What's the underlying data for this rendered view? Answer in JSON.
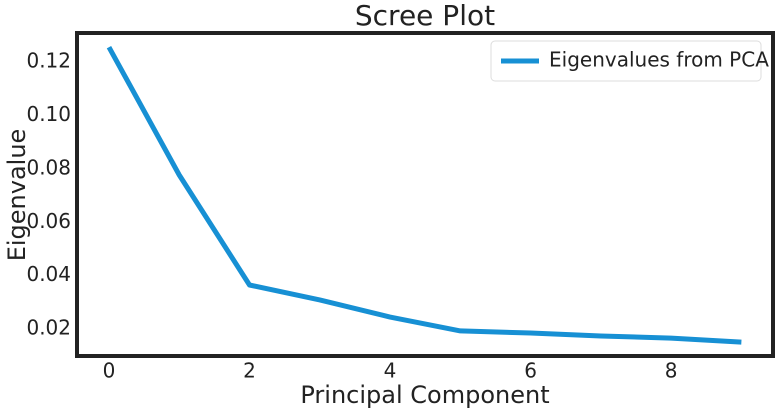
{
  "chart_data": {
    "type": "line",
    "title": "Scree Plot",
    "x_label": "Principal Component",
    "y_label": "Eigenvalue",
    "x": [
      0,
      1,
      2,
      3,
      4,
      5,
      6,
      7,
      8,
      9
    ],
    "series": [
      {
        "name": "Eigenvalues from PCA",
        "color": "#1790d4",
        "values": [
          0.1256,
          0.0777,
          0.0365,
          0.0309,
          0.0245,
          0.0193,
          0.0185,
          0.0174,
          0.0166,
          0.0151
        ]
      }
    ],
    "xlim": [
      -0.455,
      9.45
    ],
    "ylim": [
      0.0099,
      0.1309
    ],
    "xticks": [
      0,
      2,
      4,
      6,
      8
    ],
    "yticks": [
      0.02,
      0.04,
      0.06,
      0.08,
      {
        "value": 0.1,
        "label": "0.10"
      },
      0.12
    ],
    "grid": false,
    "legend": "upper right"
  }
}
